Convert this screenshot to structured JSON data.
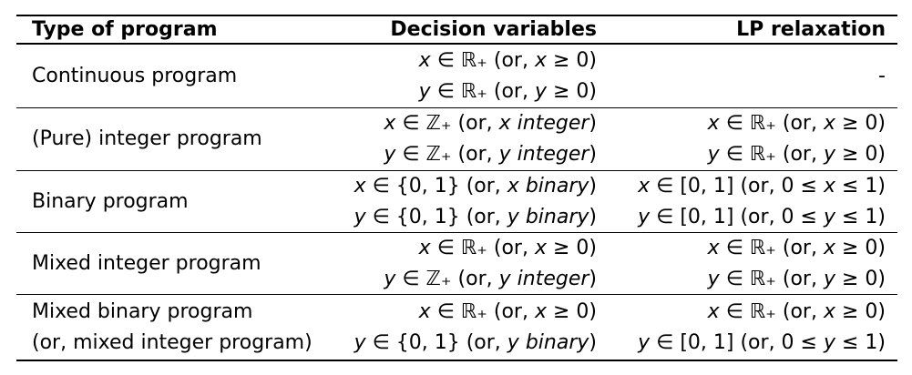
{
  "table": {
    "header": [
      "Type of program",
      "Decision variables",
      "LP relaxation"
    ],
    "rows": [
      {
        "type": [
          "Continuous program"
        ],
        "decision": [
          "x ∈ ℝ₊ (or, x ≥ 0)",
          "y ∈ ℝ₊ (or, y ≥ 0)"
        ],
        "relaxation": [
          "-"
        ]
      },
      {
        "type": [
          "(Pure) integer program"
        ],
        "decision": [
          "x ∈ ℤ₊ (or, x integer)",
          "y ∈ ℤ₊ (or, y integer)"
        ],
        "relaxation": [
          "x ∈ ℝ₊ (or, x ≥ 0)",
          "y ∈ ℝ₊ (or, y ≥ 0)"
        ]
      },
      {
        "type": [
          "Binary program"
        ],
        "decision": [
          "x ∈ {0, 1} (or, x binary)",
          "y ∈ {0, 1} (or, y binary)"
        ],
        "relaxation": [
          "x ∈ [0, 1] (or, 0 ≤ x ≤ 1)",
          "y ∈ [0, 1] (or, 0 ≤ y ≤ 1)"
        ]
      },
      {
        "type": [
          "Mixed integer program"
        ],
        "decision": [
          "x ∈ ℝ₊ (or, x ≥ 0)",
          "y ∈ ℤ₊ (or, y integer)"
        ],
        "relaxation": [
          "x ∈ ℝ₊ (or, x ≥ 0)",
          "y ∈ ℝ₊ (or, y ≥ 0)"
        ]
      },
      {
        "type": [
          "Mixed binary program",
          "(or, mixed integer program)"
        ],
        "decision": [
          "x ∈ ℝ₊ (or, x ≥ 0)",
          "y ∈ {0, 1} (or, y binary)"
        ],
        "relaxation": [
          "x ∈ ℝ₊ (or, x ≥ 0)",
          "y ∈ [0, 1] (or, 0 ≤ y ≤ 1)"
        ]
      }
    ]
  }
}
